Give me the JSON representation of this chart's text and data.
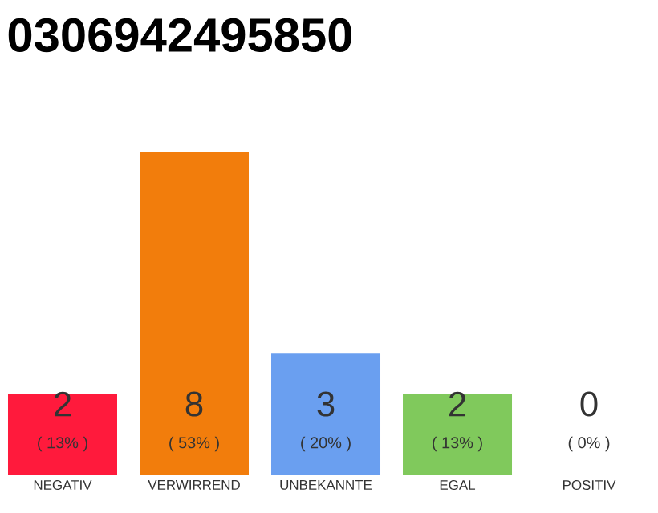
{
  "chart_data": {
    "type": "bar",
    "title": "0306942495850",
    "categories": [
      "NEGATIV",
      "VERWIRREND",
      "UNBEKANNTE",
      "EGAL",
      "POSITIV"
    ],
    "values": [
      2,
      8,
      3,
      2,
      0
    ],
    "colors": [
      "#ff1a3c",
      "#f27d0c",
      "#6a9ff0",
      "#80c95c",
      "#d0d0d0"
    ],
    "ylim": [
      0,
      8
    ],
    "tick_labels": "x",
    "data_labels": true,
    "grid": false,
    "annotations": [
      "( 13% )",
      "( 53% )",
      "( 20% )",
      "( 13% )",
      "( 0% )"
    ]
  }
}
